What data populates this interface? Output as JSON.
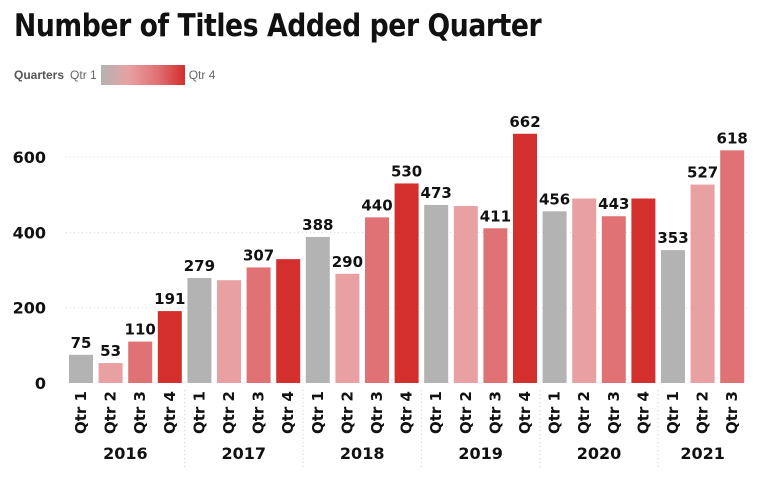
{
  "title": "Number of Titles Added per Quarter",
  "legend": {
    "title": "Quarters",
    "min_label": "Qtr 1",
    "max_label": "Qtr 4",
    "gradient_colors": [
      "#b3b3b3",
      "#e8a0a2",
      "#e07276",
      "#d32f2c"
    ]
  },
  "chart_data": {
    "type": "bar",
    "title": "Number of Titles Added per Quarter",
    "xlabel": "",
    "ylabel": "",
    "ylim": [
      0,
      700
    ],
    "y_ticks": [
      0,
      200,
      400,
      600
    ],
    "grid": true,
    "legend_position": "top-left",
    "groups": [
      {
        "year": "2016",
        "bars": [
          {
            "quarter": "Qtr 1",
            "value": 75,
            "label": "75"
          },
          {
            "quarter": "Qtr 2",
            "value": 53,
            "label": "53"
          },
          {
            "quarter": "Qtr 3",
            "value": 110,
            "label": "110"
          },
          {
            "quarter": "Qtr 4",
            "value": 191,
            "label": "191"
          }
        ]
      },
      {
        "year": "2017",
        "bars": [
          {
            "quarter": "Qtr 1",
            "value": 279,
            "label": "279"
          },
          {
            "quarter": "Qtr 2",
            "value": 273,
            "label": ""
          },
          {
            "quarter": "Qtr 3",
            "value": 307,
            "label": "307"
          },
          {
            "quarter": "Qtr 4",
            "value": 329,
            "label": ""
          }
        ]
      },
      {
        "year": "2018",
        "bars": [
          {
            "quarter": "Qtr 1",
            "value": 388,
            "label": "388"
          },
          {
            "quarter": "Qtr 2",
            "value": 290,
            "label": "290"
          },
          {
            "quarter": "Qtr 3",
            "value": 440,
            "label": "440"
          },
          {
            "quarter": "Qtr 4",
            "value": 530,
            "label": "530"
          }
        ]
      },
      {
        "year": "2019",
        "bars": [
          {
            "quarter": "Qtr 1",
            "value": 473,
            "label": "473"
          },
          {
            "quarter": "Qtr 2",
            "value": 470,
            "label": ""
          },
          {
            "quarter": "Qtr 3",
            "value": 411,
            "label": "411"
          },
          {
            "quarter": "Qtr 4",
            "value": 662,
            "label": "662"
          }
        ]
      },
      {
        "year": "2020",
        "bars": [
          {
            "quarter": "Qtr 1",
            "value": 456,
            "label": "456"
          },
          {
            "quarter": "Qtr 2",
            "value": 490,
            "label": ""
          },
          {
            "quarter": "Qtr 3",
            "value": 443,
            "label": "443"
          },
          {
            "quarter": "Qtr 4",
            "value": 490,
            "label": ""
          }
        ]
      },
      {
        "year": "2021",
        "bars": [
          {
            "quarter": "Qtr 1",
            "value": 353,
            "label": "353"
          },
          {
            "quarter": "Qtr 2",
            "value": 527,
            "label": "527"
          },
          {
            "quarter": "Qtr 3",
            "value": 618,
            "label": "618"
          }
        ]
      }
    ],
    "quarter_colors": {
      "Qtr 1": "#b3b3b3",
      "Qtr 2": "#e8a0a2",
      "Qtr 3": "#e07276",
      "Qtr 4": "#d32f2c"
    }
  }
}
